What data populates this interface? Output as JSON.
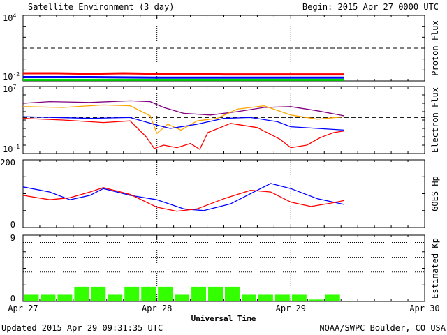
{
  "header": {
    "title": "Satellite Environment (3 day)",
    "begin": "Begin:  2015 Apr 27 0000 UTC"
  },
  "footer": {
    "updated": "Updated 2015 Apr 29 09:31:35 UTC",
    "credit": "NOAA/SWPC Boulder, CO USA"
  },
  "colors": {
    "red": "#ff0000",
    "blue": "#0000ff",
    "green": "#00dd00",
    "purple": "#800080",
    "orange": "#ffa500",
    "kp_bar": "#33ff00",
    "frame": "#000000"
  },
  "chart_data": {
    "type": "line",
    "xlabel": "Universal Time",
    "x_ticks": [
      "Apr 27",
      "Apr 28",
      "Apr 29",
      "Apr 30"
    ],
    "x_range_days": [
      0,
      3
    ],
    "data_end_day": 2.4,
    "panels": [
      {
        "id": "proton",
        "ylabel": "Proton Flux",
        "scale": "log",
        "ylim_exp": [
          -2,
          4
        ],
        "ytick_labels": [
          {
            "base": "10",
            "exp": "4"
          },
          {
            "base": "10",
            "exp": "-2"
          }
        ],
        "threshold_exp": 1,
        "series": [
          {
            "color": "red",
            "values": [
              [
                0.0,
                -1.3
              ],
              [
                0.25,
                -1.3
              ],
              [
                0.5,
                -1.35
              ],
              [
                0.75,
                -1.3
              ],
              [
                1.0,
                -1.35
              ],
              [
                1.25,
                -1.35
              ],
              [
                1.5,
                -1.4
              ],
              [
                1.75,
                -1.4
              ],
              [
                2.0,
                -1.4
              ],
              [
                2.25,
                -1.4
              ],
              [
                2.4,
                -1.4
              ]
            ]
          },
          {
            "color": "blue",
            "values": [
              [
                0.0,
                -1.65
              ],
              [
                0.5,
                -1.65
              ],
              [
                1.0,
                -1.7
              ],
              [
                1.5,
                -1.7
              ],
              [
                2.0,
                -1.7
              ],
              [
                2.4,
                -1.7
              ]
            ]
          },
          {
            "color": "green",
            "values": [
              [
                0.0,
                -1.9
              ],
              [
                0.5,
                -1.9
              ],
              [
                1.0,
                -1.9
              ],
              [
                1.5,
                -1.9
              ],
              [
                2.0,
                -1.9
              ],
              [
                2.4,
                -1.9
              ]
            ]
          }
        ]
      },
      {
        "id": "electron",
        "ylabel": "Electron Flux",
        "scale": "log",
        "ylim_exp": [
          -1,
          7
        ],
        "ytick_labels": [
          {
            "base": "10",
            "exp": "7"
          },
          {
            "base": "10",
            "exp": "-1"
          }
        ],
        "threshold_exp": 3.3,
        "series": [
          {
            "color": "purple",
            "values": [
              [
                0.0,
                5.0
              ],
              [
                0.2,
                5.2
              ],
              [
                0.5,
                5.1
              ],
              [
                0.8,
                5.3
              ],
              [
                0.95,
                5.2
              ],
              [
                1.05,
                4.5
              ],
              [
                1.2,
                3.8
              ],
              [
                1.4,
                3.6
              ],
              [
                1.6,
                4.0
              ],
              [
                1.8,
                4.5
              ],
              [
                2.0,
                4.6
              ],
              [
                2.2,
                4.1
              ],
              [
                2.4,
                3.5
              ]
            ]
          },
          {
            "color": "orange",
            "values": [
              [
                0.0,
                4.6
              ],
              [
                0.3,
                4.5
              ],
              [
                0.6,
                4.8
              ],
              [
                0.8,
                4.7
              ],
              [
                0.95,
                3.5
              ],
              [
                1.0,
                1.4
              ],
              [
                1.08,
                2.5
              ],
              [
                1.18,
                1.8
              ],
              [
                1.3,
                2.9
              ],
              [
                1.45,
                3.2
              ],
              [
                1.6,
                4.3
              ],
              [
                1.8,
                4.7
              ],
              [
                2.0,
                3.6
              ],
              [
                2.2,
                3.1
              ],
              [
                2.4,
                3.4
              ]
            ]
          },
          {
            "color": "blue",
            "values": [
              [
                0.0,
                3.4
              ],
              [
                0.5,
                3.2
              ],
              [
                0.8,
                3.3
              ],
              [
                1.0,
                2.4
              ],
              [
                1.1,
                2.0
              ],
              [
                1.3,
                2.5
              ],
              [
                1.5,
                3.2
              ],
              [
                1.7,
                3.3
              ],
              [
                1.9,
                2.8
              ],
              [
                2.0,
                2.2
              ],
              [
                2.2,
                2.0
              ],
              [
                2.4,
                1.8
              ]
            ]
          },
          {
            "color": "red",
            "values": [
              [
                0.0,
                3.2
              ],
              [
                0.3,
                3.0
              ],
              [
                0.6,
                2.7
              ],
              [
                0.8,
                2.9
              ],
              [
                0.92,
                1.0
              ],
              [
                0.98,
                -0.4
              ],
              [
                1.05,
                0.0
              ],
              [
                1.15,
                -0.3
              ],
              [
                1.25,
                0.2
              ],
              [
                1.32,
                -0.5
              ],
              [
                1.38,
                1.5
              ],
              [
                1.55,
                2.6
              ],
              [
                1.75,
                2.1
              ],
              [
                1.92,
                0.7
              ],
              [
                2.0,
                -0.3
              ],
              [
                2.12,
                0.0
              ],
              [
                2.22,
                0.9
              ],
              [
                2.32,
                1.5
              ],
              [
                2.4,
                1.7
              ]
            ]
          }
        ]
      },
      {
        "id": "hp",
        "ylabel": "GOES Hp",
        "scale": "linear",
        "ylim": [
          0,
          200
        ],
        "ytick_labels": [
          "200",
          "0"
        ],
        "series": [
          {
            "color": "blue",
            "values": [
              [
                0.0,
                120
              ],
              [
                0.2,
                105
              ],
              [
                0.35,
                82
              ],
              [
                0.5,
                95
              ],
              [
                0.6,
                115
              ],
              [
                0.8,
                95
              ],
              [
                1.0,
                82
              ],
              [
                1.2,
                55
              ],
              [
                1.35,
                50
              ],
              [
                1.55,
                70
              ],
              [
                1.75,
                110
              ],
              [
                1.85,
                130
              ],
              [
                2.0,
                115
              ],
              [
                2.2,
                85
              ],
              [
                2.4,
                68
              ]
            ]
          },
          {
            "color": "red",
            "values": [
              [
                0.0,
                95
              ],
              [
                0.2,
                82
              ],
              [
                0.35,
                88
              ],
              [
                0.5,
                105
              ],
              [
                0.6,
                118
              ],
              [
                0.8,
                98
              ],
              [
                1.0,
                60
              ],
              [
                1.15,
                48
              ],
              [
                1.3,
                55
              ],
              [
                1.5,
                85
              ],
              [
                1.7,
                110
              ],
              [
                1.85,
                105
              ],
              [
                2.0,
                75
              ],
              [
                2.15,
                62
              ],
              [
                2.3,
                72
              ],
              [
                2.4,
                80
              ]
            ]
          }
        ]
      },
      {
        "id": "kp",
        "ylabel": "Estimated Kp",
        "scale": "linear",
        "ylim": [
          0,
          9
        ],
        "ytick_labels": [
          "9",
          "0"
        ],
        "gridlines": [
          4,
          6,
          8
        ],
        "bars": [
          1,
          1,
          1,
          2,
          2,
          1,
          2,
          2,
          2,
          1,
          2,
          2,
          2,
          1,
          1,
          1,
          1,
          0.25,
          1
        ]
      }
    ]
  }
}
